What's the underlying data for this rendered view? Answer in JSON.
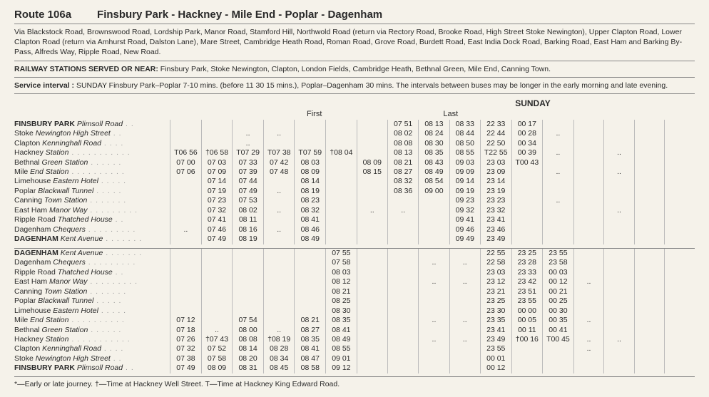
{
  "header": {
    "route_no": "Route 106a",
    "route_name": "Finsbury Park - Hackney - Mile End - Poplar - Dagenham"
  },
  "via": "Via Blackstock Road, Brownswood Road, Lordship Park, Manor Road, Stamford Hill, Northwold Road (return via Rectory Road, Brooke Road, High Street Stoke Newington), Upper Clapton Road, Lower Clapton Road (return via Amhurst Road, Dalston Lane), Mare Street, Cambridge Heath Road, Roman Road, Grove Road, Burdett Road, East India Dock Road, Barking Road, East Ham and Barking By-Pass, Alfreds Way, Ripple Road, New Road.",
  "railway": {
    "label": "RAILWAY STATIONS SERVED OR NEAR:",
    "text": "Finsbury Park, Stoke Newington, Clapton, London Fields, Cambridge Heath, Bethnal Green, Mile End, Canning Town."
  },
  "service": {
    "label": "Service interval :",
    "text": "SUNDAY Finsbury Park–Poplar 7-10 mins. (before 11 30 15 mins.), Poplar–Dagenham 30 mins.   The intervals between buses may be longer in the early morning and late evening."
  },
  "table": {
    "day_label": "SUNDAY",
    "first_label": "First",
    "last_label": "Last",
    "col_count": 17,
    "outbound": [
      {
        "stop": "FINSBURY PARK Plimsoll Road",
        "bold": [
          0,
          13
        ],
        "t": [
          "",
          "",
          "",
          "",
          "",
          "",
          "",
          "07 51",
          "08 13",
          "08 33",
          "22 33",
          "00 17",
          "",
          "",
          "",
          "",
          ""
        ]
      },
      {
        "stop": "Stoke Newington High Street",
        "t": [
          "",
          "",
          "..",
          "..",
          "",
          "",
          "",
          "08 02",
          "08 24",
          "08 44",
          "22 44",
          "00 28",
          "..",
          "",
          "",
          "",
          ""
        ]
      },
      {
        "stop": "Clapton Kenninghall Road",
        "t": [
          "",
          "",
          "..",
          "",
          "",
          "",
          "",
          "08 08",
          "08 30",
          "08 50",
          "22 50",
          "00 34",
          "",
          "",
          "",
          "",
          ""
        ]
      },
      {
        "stop": "Hackney Station",
        "t": [
          "T06 56",
          "†06 58",
          "T07 29",
          "T07 38",
          "T07 59",
          "†08 04",
          "",
          "08 13",
          "08 35",
          "08 55",
          "T22 55",
          "00 39",
          "..",
          "",
          "..",
          "",
          ""
        ]
      },
      {
        "stop": "Bethnal Green Station",
        "t": [
          "07 00",
          "07 03",
          "07 33",
          "07 42",
          "08 03",
          "",
          "08 09",
          "08 21",
          "08 43",
          "09 03",
          "23 03",
          "T00 43",
          "",
          "",
          "",
          "",
          ""
        ]
      },
      {
        "stop": "Mile End Station",
        "t": [
          "07 06",
          "07 09",
          "07 39",
          "07 48",
          "08 09",
          "",
          "08 15",
          "08 27",
          "08 49",
          "09 09",
          "23 09",
          "",
          "..",
          "",
          "..",
          "",
          ""
        ]
      },
      {
        "stop": "Limehouse Eastern Hotel",
        "t": [
          "",
          "07 14",
          "07 44",
          "",
          "08 14",
          "",
          "",
          "08 32",
          "08 54",
          "09 14",
          "23 14",
          "",
          "",
          "",
          "",
          "",
          ""
        ]
      },
      {
        "stop": "Poplar Blackwall Tunnel",
        "ital": [
          7,
          23
        ],
        "t": [
          "",
          "07 19",
          "07 49",
          "..",
          "08 19",
          "",
          "",
          "08 36",
          "09 00",
          "09 19",
          "23 19",
          "",
          "",
          "",
          "",
          "",
          ""
        ]
      },
      {
        "stop": "Canning Town Station",
        "t": [
          "",
          "07 23",
          "07 53",
          "",
          "08 23",
          "",
          "",
          "",
          "",
          "09 23",
          "23 23",
          "",
          "..",
          "",
          "",
          "",
          ""
        ]
      },
      {
        "stop": "East Ham Manor Way",
        "ital": [
          9,
          18
        ],
        "t": [
          "",
          "07 32",
          "08 02",
          "..",
          "08 32",
          "",
          "..",
          "..",
          "",
          "09 32",
          "23 32",
          "",
          "",
          "",
          "..",
          "",
          ""
        ]
      },
      {
        "stop": "Ripple Road Thatched House",
        "ital": [
          12,
          26
        ],
        "t": [
          "",
          "07 41",
          "08 11",
          "",
          "08 41",
          "",
          "",
          "",
          "",
          "09 41",
          "23 41",
          "",
          "",
          "",
          "",
          "",
          ""
        ]
      },
      {
        "stop": "Dagenham Chequers",
        "ital": [
          9,
          17
        ],
        "t": [
          "..",
          "07 46",
          "08 16",
          "..",
          "08 46",
          "",
          "",
          "",
          "",
          "09 46",
          "23 46",
          "",
          "",
          "",
          "",
          "",
          ""
        ]
      },
      {
        "stop": "DAGENHAM Kent Avenue",
        "bold": [
          0,
          8
        ],
        "ital": [
          9,
          20
        ],
        "t": [
          "",
          "07 49",
          "08 19",
          "",
          "08 49",
          "",
          "",
          "",
          "",
          "09 49",
          "23 49",
          "",
          "",
          "",
          "",
          "",
          ""
        ]
      }
    ],
    "inbound": [
      {
        "stop": "DAGENHAM Kent Avenue",
        "bold": [
          0,
          8
        ],
        "ital": [
          9,
          20
        ],
        "t": [
          "",
          "",
          "",
          "",
          "",
          "07 55",
          "",
          "",
          "",
          "",
          "22 55",
          "23 25",
          "23 55",
          "",
          "",
          "",
          ""
        ]
      },
      {
        "stop": "Dagenham Chequers",
        "ital": [
          9,
          17
        ],
        "t": [
          "",
          "",
          "",
          "",
          "",
          "07 58",
          "",
          "",
          "..",
          "..",
          "22 58",
          "23 28",
          "23 58",
          "",
          "",
          "",
          ""
        ]
      },
      {
        "stop": "Ripple Road Thatched House",
        "ital": [
          12,
          26
        ],
        "t": [
          "",
          "",
          "",
          "",
          "",
          "08 03",
          "",
          "",
          "",
          "",
          "23 03",
          "23 33",
          "00 03",
          "",
          "",
          "",
          ""
        ]
      },
      {
        "stop": "East Ham Manor Way",
        "ital": [
          9,
          18
        ],
        "t": [
          "",
          "",
          "",
          "",
          "",
          "08 12",
          "",
          "",
          "..",
          "..",
          "23 12",
          "23 42",
          "00 12",
          "..",
          "",
          "",
          ""
        ]
      },
      {
        "stop": "Canning Town Station",
        "t": [
          "",
          "",
          "",
          "",
          "",
          "08 21",
          "",
          "",
          "",
          "",
          "23 21",
          "23 51",
          "00 21",
          "",
          "",
          "",
          ""
        ]
      },
      {
        "stop": "Poplar Blackwall Tunnel",
        "ital": [
          7,
          23
        ],
        "t": [
          "",
          "",
          "",
          "",
          "",
          "08 25",
          "",
          "",
          "",
          "",
          "23 25",
          "23 55",
          "00 25",
          "",
          "",
          "",
          ""
        ]
      },
      {
        "stop": "Limehouse Eastern Hotel",
        "t": [
          "",
          "",
          "",
          "",
          "",
          "08 30",
          "",
          "",
          "",
          "",
          "23 30",
          "00 00",
          "00 30",
          "",
          "",
          "",
          ""
        ]
      },
      {
        "stop": "Mile End Station",
        "t": [
          "07 12",
          "",
          "07 54",
          "",
          "08 21",
          "08 35",
          "",
          "",
          "..",
          "..",
          "23 35",
          "00 05",
          "00 35",
          "..",
          "",
          "",
          ""
        ]
      },
      {
        "stop": "Bethnal Green Station",
        "t": [
          "07 18",
          "..",
          "08 00",
          "..",
          "08 27",
          "08 41",
          "",
          "",
          "",
          "",
          "23 41",
          "00 11",
          "00 41",
          "",
          "",
          "",
          ""
        ]
      },
      {
        "stop": "Hackney Station",
        "t": [
          "07 26",
          "†07 43",
          "08 08",
          "†08 19",
          "08 35",
          "08 49",
          "",
          "",
          "..",
          "..",
          "23 49",
          "†00 16",
          "T00 45",
          "..",
          "..",
          "",
          ""
        ]
      },
      {
        "stop": "Clapton Kenninghall Road",
        "t": [
          "07 32",
          "07 52",
          "08 14",
          "08 28",
          "08 41",
          "08 55",
          "",
          "",
          "",
          "",
          "23 55",
          "",
          "",
          "..",
          "",
          "",
          ""
        ]
      },
      {
        "stop": "Stoke Newington High Street",
        "t": [
          "07 38",
          "07 58",
          "08 20",
          "08 34",
          "08 47",
          "09 01",
          "",
          "",
          "",
          "",
          "00 01",
          "",
          "",
          "",
          "",
          "",
          ""
        ]
      },
      {
        "stop": "FINSBURY PARK Plimsoll Road",
        "bold": [
          0,
          13
        ],
        "t": [
          "07 49",
          "08 09",
          "08 31",
          "08 45",
          "08 58",
          "09 12",
          "",
          "",
          "",
          "",
          "00 12",
          "",
          "",
          "",
          "",
          "",
          ""
        ]
      }
    ]
  },
  "footnote": "*—Early or late journey.   †—Time at Hackney Well Street.   T—Time at Hackney King Edward Road."
}
